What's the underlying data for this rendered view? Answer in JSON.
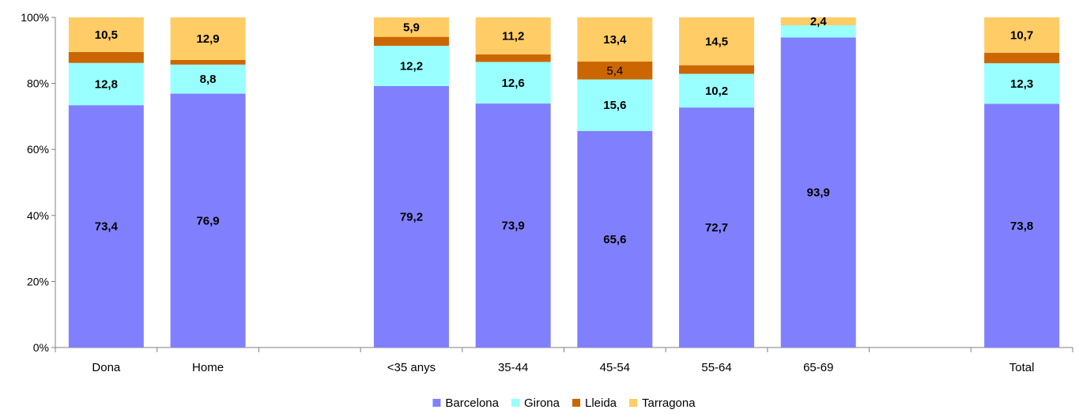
{
  "chart_data": {
    "type": "bar",
    "stacked": true,
    "percent_stacked": true,
    "title": "",
    "xlabel": "",
    "ylabel": "",
    "ylim": [
      0,
      100
    ],
    "yticks": [
      "0%",
      "20%",
      "40%",
      "60%",
      "80%",
      "100%"
    ],
    "grid": false,
    "legend_position": "bottom",
    "slots": [
      "Dona",
      "Home",
      "",
      "<35 anys",
      "35-44",
      "45-54",
      "55-64",
      "65-69",
      "",
      "Total"
    ],
    "categories": [
      "Dona",
      "Home",
      "<35 anys",
      "35-44",
      "45-54",
      "55-64",
      "65-69",
      "Total"
    ],
    "series": [
      {
        "name": "Barcelona",
        "color": "#8080ff",
        "values": [
          73.4,
          76.9,
          79.2,
          73.9,
          65.6,
          72.7,
          93.9,
          73.8
        ],
        "labels": [
          "73,4",
          "76,9",
          "79,2",
          "73,9",
          "65,6",
          "72,7",
          "93,9",
          "73,8"
        ]
      },
      {
        "name": "Girona",
        "color": "#99ffff",
        "values": [
          12.8,
          8.8,
          12.2,
          12.6,
          15.6,
          10.2,
          3.7,
          12.3
        ],
        "labels": [
          "12,8",
          "8,8",
          "12,2",
          "12,6",
          "15,6",
          "10,2",
          "",
          "12,3"
        ]
      },
      {
        "name": "Lleida",
        "color": "#cc6600",
        "values": [
          3.3,
          1.4,
          2.7,
          2.3,
          5.4,
          2.6,
          0.0,
          3.2
        ],
        "labels": [
          "",
          "",
          "",
          "",
          "5,4",
          "",
          "",
          ""
        ]
      },
      {
        "name": "Tarragona",
        "color": "#ffcc66",
        "values": [
          10.5,
          12.9,
          5.9,
          11.2,
          13.4,
          14.5,
          2.4,
          10.7
        ],
        "labels": [
          "10,5",
          "12,9",
          "5,9",
          "11,2",
          "13,4",
          "14,5",
          "2,4",
          "10,7"
        ]
      }
    ]
  }
}
